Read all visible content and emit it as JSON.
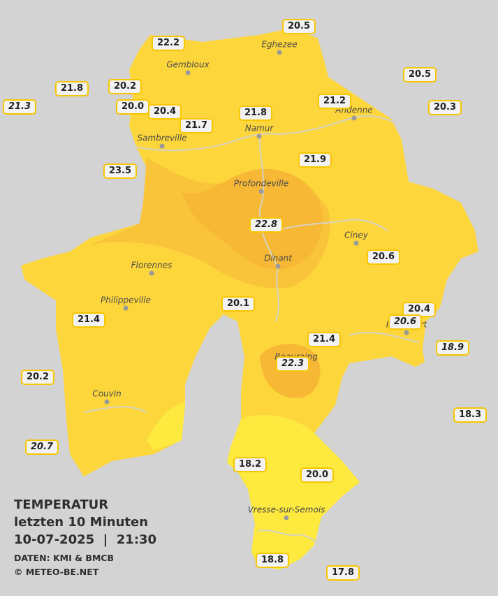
{
  "title": {
    "heading": "TEMPERATUR",
    "period": "letzten 10 Minuten",
    "datetime": "10-07-2025  |  21:30",
    "source": "DATEN: KMI & BMCB",
    "credit": "© METEO-BE.NET"
  },
  "cities": [
    "Eghezee",
    "Gembloux",
    "Andenne",
    "Namur",
    "Sambreville",
    "Profondeville",
    "Ciney",
    "Dinant",
    "Florennes",
    "Philippeville",
    "Rochefort",
    "Beauraing",
    "Couvin",
    "Vresse-sur-Semois"
  ],
  "stations": [
    {
      "label": "20.5",
      "italic": false
    },
    {
      "label": "22.2",
      "italic": false
    },
    {
      "label": "21.8",
      "italic": false
    },
    {
      "label": "20.2",
      "italic": false
    },
    {
      "label": "20.5",
      "italic": false
    },
    {
      "label": "21.3",
      "italic": true
    },
    {
      "label": "20.0",
      "italic": false
    },
    {
      "label": "20.4",
      "italic": false
    },
    {
      "label": "21.2",
      "italic": false
    },
    {
      "label": "20.3",
      "italic": false
    },
    {
      "label": "21.8",
      "italic": false
    },
    {
      "label": "21.7",
      "italic": false
    },
    {
      "label": "21.9",
      "italic": false
    },
    {
      "label": "23.5",
      "italic": false
    },
    {
      "label": "22.8",
      "italic": true
    },
    {
      "label": "20.6",
      "italic": false
    },
    {
      "label": "20.1",
      "italic": false
    },
    {
      "label": "20.4",
      "italic": false
    },
    {
      "label": "20.6",
      "italic": true
    },
    {
      "label": "21.4",
      "italic": false
    },
    {
      "label": "21.4",
      "italic": false
    },
    {
      "label": "18.9",
      "italic": true
    },
    {
      "label": "22.3",
      "italic": true
    },
    {
      "label": "20.2",
      "italic": false
    },
    {
      "label": "18.3",
      "italic": false
    },
    {
      "label": "20.7",
      "italic": true
    },
    {
      "label": "18.2",
      "italic": false
    },
    {
      "label": "20.0",
      "italic": false
    },
    {
      "label": "18.8",
      "italic": false
    },
    {
      "label": "17.8",
      "italic": false
    }
  ]
}
